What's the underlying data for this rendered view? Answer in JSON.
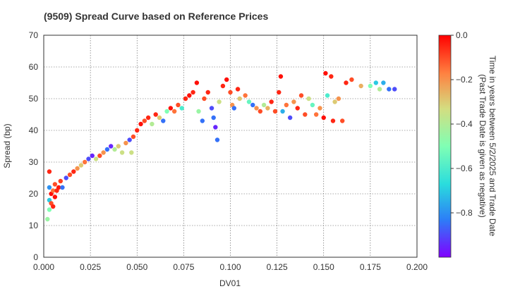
{
  "chart_data": {
    "type": "scatter",
    "title": "(9509)   Spread Curve based on Reference Prices",
    "xlabel": "DV01",
    "ylabel": "Spread (bp)",
    "xlim": [
      0.0,
      0.2
    ],
    "ylim": [
      0,
      70
    ],
    "xticks": [
      "0.000",
      "0.025",
      "0.050",
      "0.075",
      "0.100",
      "0.125",
      "0.150",
      "0.175",
      "0.200"
    ],
    "yticks": [
      "0",
      "10",
      "20",
      "30",
      "40",
      "50",
      "60",
      "70"
    ],
    "grid": true,
    "colorbar": {
      "label": "Time in years between 5/2/2025 and Trade Date\n(Past Trade Date is given as negative)",
      "range": [
        -1.0,
        0.0
      ],
      "ticks": [
        "0.0",
        "−0.2",
        "−0.4",
        "−0.6",
        "−0.8"
      ],
      "tick_values": [
        0.0,
        -0.2,
        -0.4,
        -0.6,
        -0.8
      ],
      "colormap": "rainbow",
      "colors": [
        "#8000ff",
        "#2c7ef7",
        "#2adddd",
        "#80ffb4",
        "#d4dd80",
        "#ff8040",
        "#ff0000"
      ]
    },
    "series": [
      {
        "description": "points as [dv01, spread_bp, time_years]",
        "points": [
          [
            0.002,
            12,
            -0.45
          ],
          [
            0.003,
            15,
            -0.5
          ],
          [
            0.003,
            18,
            -0.7
          ],
          [
            0.003,
            22,
            -0.8
          ],
          [
            0.003,
            27,
            -0.05
          ],
          [
            0.004,
            17,
            -0.1
          ],
          [
            0.004,
            20,
            -0.02
          ],
          [
            0.005,
            16,
            -0.05
          ],
          [
            0.005,
            21,
            -0.15
          ],
          [
            0.006,
            19,
            -0.02
          ],
          [
            0.006,
            23,
            -0.1
          ],
          [
            0.007,
            21,
            -0.05
          ],
          [
            0.008,
            22,
            -0.03
          ],
          [
            0.009,
            24,
            -0.08
          ],
          [
            0.01,
            22,
            -0.85
          ],
          [
            0.012,
            25,
            -0.9
          ],
          [
            0.014,
            26,
            -0.1
          ],
          [
            0.016,
            27,
            -0.05
          ],
          [
            0.018,
            28,
            -0.2
          ],
          [
            0.02,
            29,
            -0.3
          ],
          [
            0.022,
            30,
            -0.15
          ],
          [
            0.024,
            31,
            -0.9
          ],
          [
            0.026,
            32,
            -0.95
          ],
          [
            0.028,
            31,
            -0.35
          ],
          [
            0.03,
            32,
            -0.1
          ],
          [
            0.032,
            33,
            -0.2
          ],
          [
            0.034,
            34,
            -0.85
          ],
          [
            0.036,
            35,
            -0.95
          ],
          [
            0.038,
            34,
            -0.4
          ],
          [
            0.04,
            35,
            -0.3
          ],
          [
            0.042,
            33,
            -0.35
          ],
          [
            0.044,
            36,
            -0.2
          ],
          [
            0.046,
            37,
            -0.9
          ],
          [
            0.047,
            33,
            -0.35
          ],
          [
            0.048,
            38,
            -0.1
          ],
          [
            0.05,
            40,
            -0.05
          ],
          [
            0.052,
            42,
            -0.02
          ],
          [
            0.054,
            43,
            -0.1
          ],
          [
            0.056,
            44,
            -0.05
          ],
          [
            0.058,
            42,
            -0.4
          ],
          [
            0.06,
            45,
            -0.05
          ],
          [
            0.062,
            44,
            -0.3
          ],
          [
            0.064,
            43,
            -0.85
          ],
          [
            0.066,
            46,
            -0.5
          ],
          [
            0.068,
            47,
            -0.02
          ],
          [
            0.07,
            46,
            -0.15
          ],
          [
            0.072,
            48,
            -0.1
          ],
          [
            0.074,
            47,
            -0.6
          ],
          [
            0.076,
            50,
            -0.05
          ],
          [
            0.078,
            51,
            -0.02
          ],
          [
            0.08,
            52,
            -0.05
          ],
          [
            0.082,
            55,
            -0.02
          ],
          [
            0.083,
            46,
            -0.45
          ],
          [
            0.085,
            43,
            -0.85
          ],
          [
            0.086,
            50,
            -0.1
          ],
          [
            0.088,
            52,
            -0.05
          ],
          [
            0.09,
            47,
            -0.9
          ],
          [
            0.091,
            44,
            -0.85
          ],
          [
            0.092,
            41,
            -0.95
          ],
          [
            0.093,
            37,
            -0.85
          ],
          [
            0.094,
            49,
            -0.35
          ],
          [
            0.096,
            54,
            -0.05
          ],
          [
            0.098,
            56,
            -0.02
          ],
          [
            0.1,
            52,
            -0.1
          ],
          [
            0.101,
            48,
            -0.2
          ],
          [
            0.102,
            47,
            -0.85
          ],
          [
            0.104,
            53,
            -0.05
          ],
          [
            0.105,
            50,
            -0.3
          ],
          [
            0.108,
            51,
            -0.15
          ],
          [
            0.11,
            49,
            -0.55
          ],
          [
            0.112,
            48,
            -0.85
          ],
          [
            0.114,
            47,
            -0.2
          ],
          [
            0.116,
            46,
            -0.1
          ],
          [
            0.118,
            48,
            -0.4
          ],
          [
            0.12,
            47,
            -0.25
          ],
          [
            0.122,
            49,
            -0.05
          ],
          [
            0.124,
            46,
            -0.1
          ],
          [
            0.126,
            52,
            -0.05
          ],
          [
            0.127,
            57,
            -0.02
          ],
          [
            0.128,
            46,
            -0.75
          ],
          [
            0.13,
            48,
            -0.15
          ],
          [
            0.132,
            44,
            -0.9
          ],
          [
            0.134,
            49,
            -0.2
          ],
          [
            0.136,
            47,
            -0.05
          ],
          [
            0.138,
            51,
            -0.1
          ],
          [
            0.14,
            45,
            -0.1
          ],
          [
            0.142,
            50,
            -0.35
          ],
          [
            0.144,
            48,
            -0.55
          ],
          [
            0.146,
            45,
            -0.15
          ],
          [
            0.148,
            47,
            -0.2
          ],
          [
            0.15,
            44,
            -0.02
          ],
          [
            0.151,
            58,
            -0.02
          ],
          [
            0.152,
            51,
            -0.6
          ],
          [
            0.154,
            57,
            -0.05
          ],
          [
            0.155,
            43,
            -0.05
          ],
          [
            0.156,
            49,
            -0.3
          ],
          [
            0.158,
            50,
            -0.2
          ],
          [
            0.16,
            43,
            -0.1
          ],
          [
            0.162,
            55,
            -0.05
          ],
          [
            0.165,
            56,
            -0.1
          ],
          [
            0.17,
            54,
            -0.25
          ],
          [
            0.175,
            54,
            -0.5
          ],
          [
            0.178,
            55,
            -0.7
          ],
          [
            0.18,
            53,
            -0.4
          ],
          [
            0.182,
            55,
            -0.75
          ],
          [
            0.185,
            53,
            -0.85
          ],
          [
            0.188,
            53,
            -0.9
          ]
        ]
      }
    ]
  }
}
